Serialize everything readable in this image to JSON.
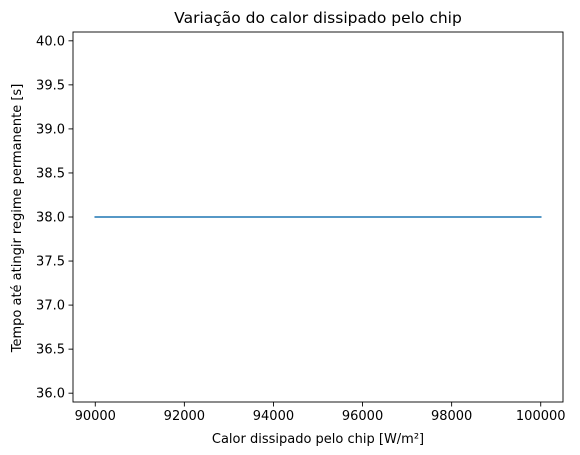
{
  "chart_data": {
    "type": "line",
    "title": "Variação do calor dissipado pelo chip",
    "xlabel": "Calor dissipado pelo chip [W/m²]",
    "ylabel": "Tempo até atingir regime permanente [s]",
    "xlim": [
      89500,
      100500
    ],
    "ylim": [
      35.9,
      40.1
    ],
    "xticks": [
      90000,
      92000,
      94000,
      96000,
      98000,
      100000
    ],
    "yticks": [
      36.0,
      36.5,
      37.0,
      37.5,
      38.0,
      38.5,
      39.0,
      39.5,
      40.0
    ],
    "xtick_labels": [
      "90000",
      "92000",
      "94000",
      "96000",
      "98000",
      "100000"
    ],
    "ytick_labels": [
      "36.0",
      "36.5",
      "37.0",
      "37.5",
      "38.0",
      "38.5",
      "39.0",
      "39.5",
      "40.0"
    ],
    "grid": false,
    "series": [
      {
        "color": "#1f77b4",
        "x": [
          90000,
          100000
        ],
        "y": [
          38.0,
          38.0
        ]
      }
    ]
  }
}
